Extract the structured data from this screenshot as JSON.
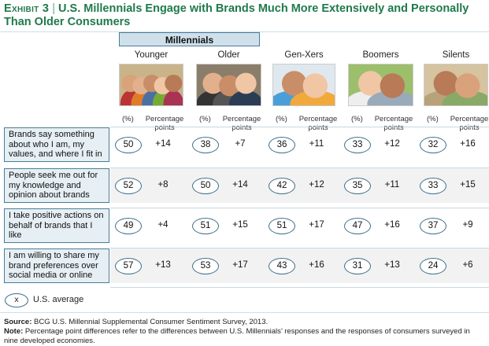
{
  "header": {
    "exhibit_label": "Exhibit 3",
    "separator": "|",
    "title": "U.S. Millennials Engage with Brands Much More Extensively and Personally Than Older Consumers"
  },
  "group_label": "Millennials",
  "subheads": {
    "pct": "(%)",
    "pp": "Percentage points"
  },
  "legend": {
    "symbol": "x",
    "label": "U.S. average"
  },
  "footer": {
    "source_label": "Source:",
    "source_text": "BCG U.S. Millennial Supplemental Consumer Sentiment Survey, 2013.",
    "note_label": "Note:",
    "note_text": "Percentage point differences refer to the differences between U.S. Millennials’ responses and the responses of consumers surveyed in nine developed economies."
  },
  "colors": {
    "title_green": "#1f7a4a",
    "ellipse_border": "#3d6f8a",
    "label_fill": "#e6eff4"
  },
  "chart_data": {
    "type": "table",
    "columns": [
      "Younger",
      "Older",
      "Gen-Xers",
      "Boomers",
      "Silents"
    ],
    "rows": [
      {
        "label": "Brands say something about who I am, my values, and where I fit in",
        "us_average_pct": [
          50,
          38,
          36,
          33,
          32
        ],
        "percentage_points": [
          "+14",
          "+7",
          "+11",
          "+12",
          "+16"
        ]
      },
      {
        "label": "People seek me out for my knowledge and opinion about brands",
        "us_average_pct": [
          52,
          50,
          42,
          35,
          33
        ],
        "percentage_points": [
          "+8",
          "+14",
          "+12",
          "+11",
          "+15"
        ]
      },
      {
        "label": "I take positive actions on behalf of brands that I like",
        "us_average_pct": [
          49,
          51,
          51,
          47,
          37
        ],
        "percentage_points": [
          "+4",
          "+15",
          "+17",
          "+16",
          "+9"
        ]
      },
      {
        "label": "I am willing to share my brand preferences over social media or online",
        "us_average_pct": [
          57,
          53,
          43,
          31,
          24
        ],
        "percentage_points": [
          "+13",
          "+17",
          "+16",
          "+13",
          "+6"
        ]
      }
    ]
  }
}
